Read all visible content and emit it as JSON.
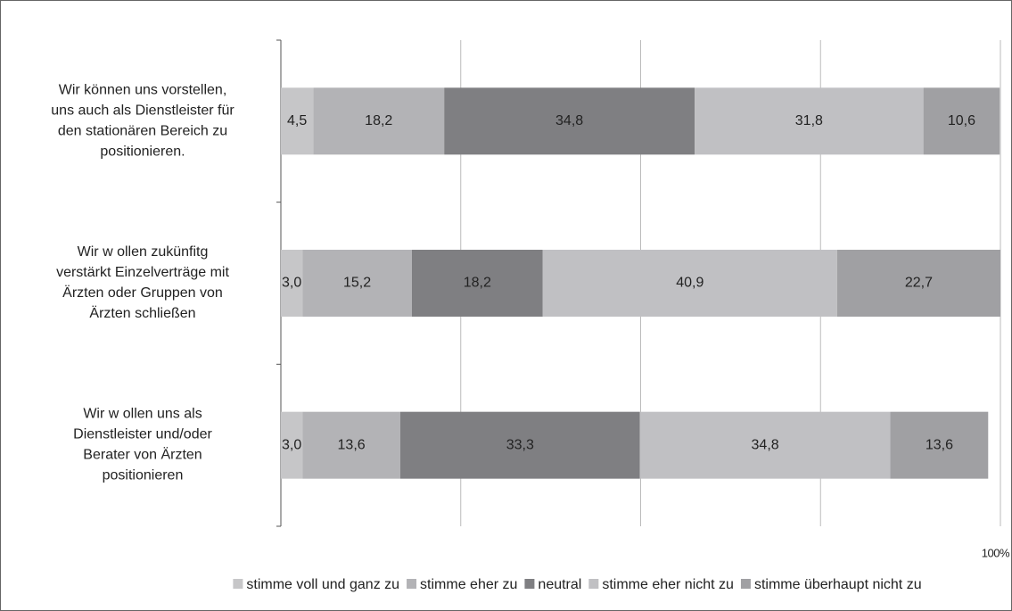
{
  "chart_data": {
    "type": "stacked_barh",
    "categories": [
      "Wir können uns vorstellen,\nuns auch als Dienstleister für\nden stationären Bereich zu\npositionieren.",
      "Wir w ollen zukünfitg\nverstärkt Einzelverträge mit\nÄrzten oder Gruppen von\nÄrzten schließen",
      "Wir w ollen uns als\nDienstleister und/oder\nBerater von Ärzten\npositionieren"
    ],
    "series": [
      {
        "name": "stimme voll und ganz zu",
        "color": "#c6c6c8",
        "values": [
          4.5,
          3.0,
          3.0
        ],
        "value_labels": [
          "4,5",
          "3,0",
          "3,0"
        ]
      },
      {
        "name": "stimme eher zu",
        "color": "#b3b3b6",
        "values": [
          18.2,
          15.2,
          13.6
        ],
        "value_labels": [
          "18,2",
          "15,2",
          "13,6"
        ]
      },
      {
        "name": "neutral",
        "color": "#7f7f82",
        "values": [
          34.8,
          18.2,
          33.3
        ],
        "value_labels": [
          "34,8",
          "18,2",
          "33,3"
        ]
      },
      {
        "name": "stimme eher nicht zu",
        "color": "#c0c0c3",
        "values": [
          31.8,
          40.9,
          34.8
        ],
        "value_labels": [
          "31,8",
          "40,9",
          "34,8"
        ]
      },
      {
        "name": "stimme überhaupt nicht zu",
        "color": "#a0a0a3",
        "values": [
          10.6,
          22.7,
          13.6
        ],
        "value_labels": [
          "10,6",
          "22,7",
          "13,6"
        ]
      }
    ],
    "xlim": [
      0,
      100
    ],
    "xticks": [
      {
        "value": 0,
        "label": null
      },
      {
        "value": 25,
        "label": null
      },
      {
        "value": 50,
        "label": null
      },
      {
        "value": 75,
        "label": null
      },
      {
        "value": 100,
        "label": "100%"
      }
    ],
    "grid": true,
    "legend": "bottom"
  }
}
